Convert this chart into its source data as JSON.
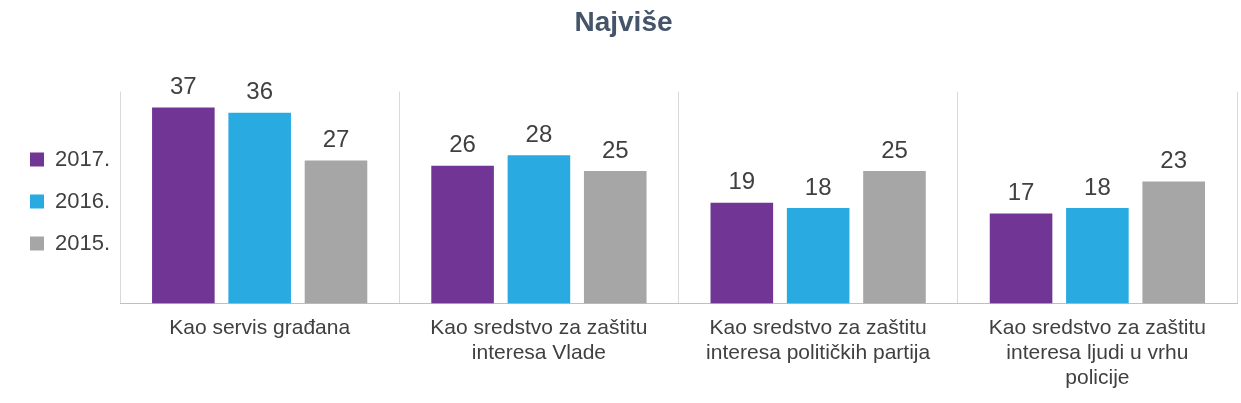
{
  "chart_data": {
    "type": "bar",
    "title": "Najviše",
    "categories": [
      "Kao servis građana",
      "Kao sredstvo za zaštitu interesa Vlade",
      "Kao sredstvo za zaštitu interesa političkih partija",
      "Kao sredstvo za zaštitu interesa ljudi u vrhu policije"
    ],
    "series": [
      {
        "name": "2017.",
        "color": "#703595",
        "values": [
          37,
          26,
          19,
          17
        ]
      },
      {
        "name": "2016.",
        "color": "#29abe2",
        "values": [
          36,
          28,
          18,
          18
        ]
      },
      {
        "name": "2015.",
        "color": "#a6a6a6",
        "values": [
          27,
          25,
          25,
          23
        ]
      }
    ],
    "data_labels": true,
    "grid": "x",
    "legend": "left"
  }
}
